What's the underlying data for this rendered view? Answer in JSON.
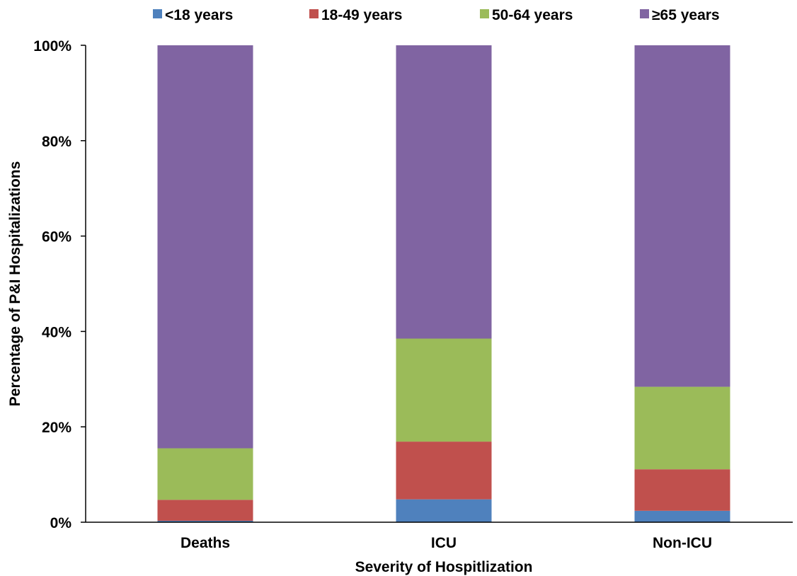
{
  "chart_data": {
    "type": "bar",
    "stacked": true,
    "categories": [
      "Deaths",
      "ICU",
      "Non-ICU"
    ],
    "series": [
      {
        "name": "<18 years",
        "color": "#4f81bd",
        "values": [
          0.3,
          4.8,
          2.4
        ]
      },
      {
        "name": "18-49 years",
        "color": "#c0504d",
        "values": [
          4.4,
          12.1,
          8.7
        ]
      },
      {
        "name": "50-64 years",
        "color": "#9bbb59",
        "values": [
          10.8,
          21.6,
          17.3
        ]
      },
      {
        "name": "≥65 years",
        "color": "#8064a2",
        "values": [
          84.5,
          61.5,
          71.6
        ]
      }
    ],
    "xlabel": "Severity of Hospitlization",
    "ylabel": "Percentage of P&I Hospitalizations",
    "ylim": [
      0,
      100
    ],
    "yticks": [
      "0%",
      "20%",
      "40%",
      "60%",
      "80%",
      "100%"
    ],
    "grid": false,
    "legend_position": "top"
  }
}
